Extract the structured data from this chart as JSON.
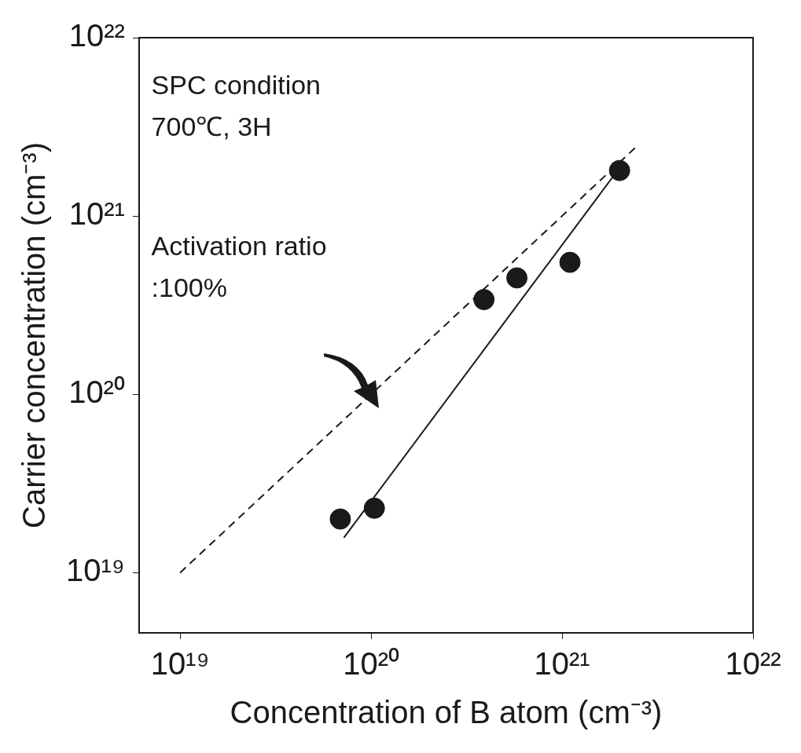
{
  "chart_data": {
    "type": "scatter",
    "xlabel": "Concentration of B atom (cm⁻³)",
    "ylabel": "Carrier concentration (cm⁻³)",
    "log": "xy",
    "grid": false,
    "legend": false,
    "xlim": [
      6.1e+18,
      1e+22
    ],
    "ylim": [
      4.6e+18,
      1e+22
    ],
    "xticks": [
      {
        "value": 1e+19,
        "label": "10¹⁹"
      },
      {
        "value": 1e+20,
        "label": "10²⁰"
      },
      {
        "value": 1e+21,
        "label": "10²¹"
      },
      {
        "value": 1e+22,
        "label": "10²²"
      }
    ],
    "yticks": [
      {
        "value": 1e+19,
        "label": "10¹⁹"
      },
      {
        "value": 1e+20,
        "label": "10²⁰"
      },
      {
        "value": 1e+21,
        "label": "10²¹"
      },
      {
        "value": 1e+22,
        "label": "10²²"
      }
    ],
    "series": [
      {
        "type": "scatter",
        "color": "#1a1a1a",
        "marker": "circle",
        "x": [
          6.9e+19,
          1.04e+20,
          3.9e+20,
          5.8e+20,
          1.1e+21,
          2e+21
        ],
        "values": [
          2e+19,
          2.3e+19,
          3.4e+20,
          4.5e+20,
          5.5e+20,
          1.8e+21
        ]
      },
      {
        "type": "line",
        "color": "#1a1a1a",
        "line_style": "dashed",
        "marker": "none",
        "x": [
          1e+19,
          2.5e+21
        ],
        "values": [
          1e+19,
          2.5e+21
        ]
      },
      {
        "type": "line",
        "color": "#1a1a1a",
        "line_style": "solid",
        "marker": "none",
        "x": [
          7.2e+19,
          2.05e+21
        ],
        "values": [
          1.57e+19,
          1.93e+21
        ]
      }
    ],
    "annotations": [
      "SPC condition",
      "700℃, 3H",
      "Activation ratio",
      ":100%"
    ]
  }
}
